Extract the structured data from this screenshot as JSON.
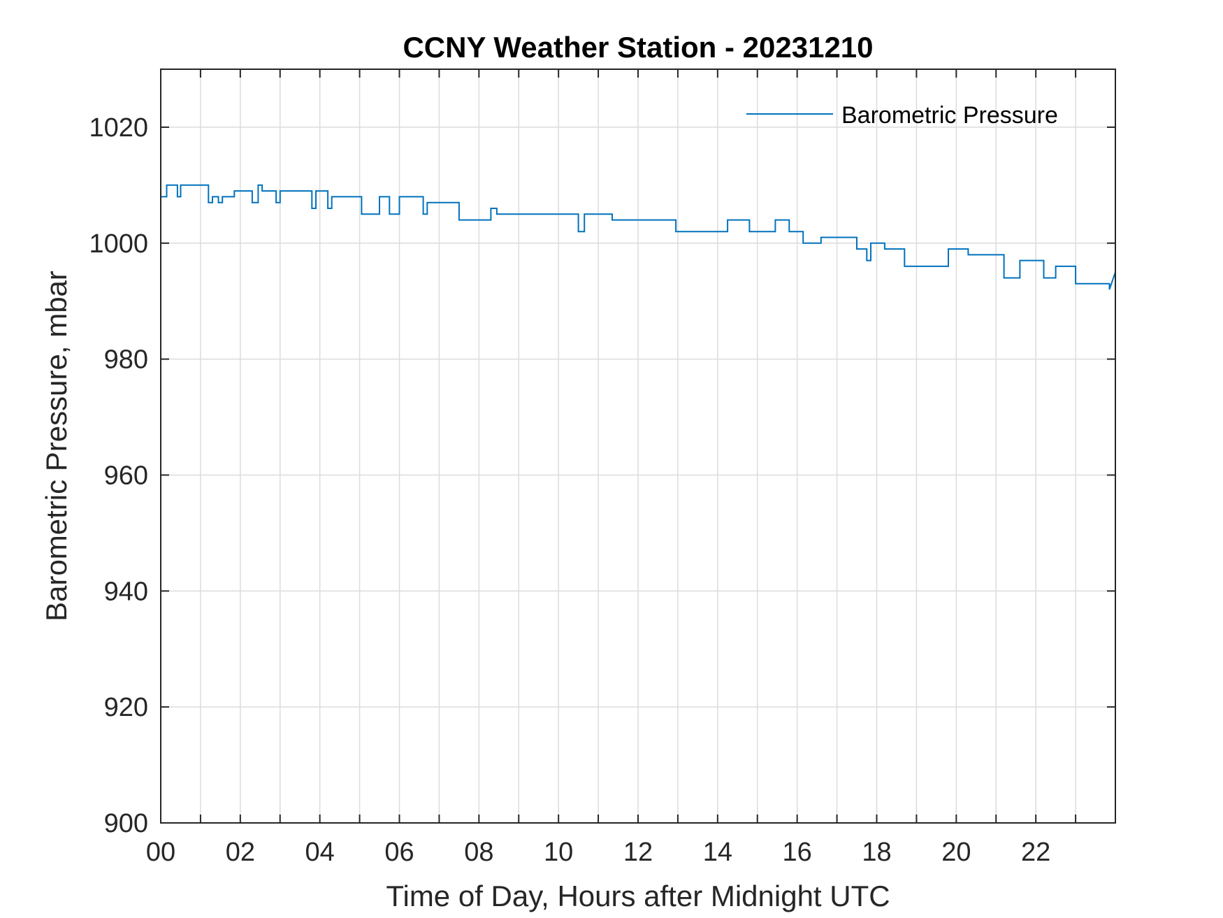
{
  "chart_data": {
    "type": "line",
    "title": "CCNY Weather Station - 20231210",
    "xlabel": "Time of Day, Hours after Midnight UTC",
    "ylabel": "Barometric Pressure, mbar",
    "xlim": [
      0,
      24
    ],
    "ylim": [
      900,
      1030
    ],
    "x_ticks": [
      0,
      2,
      4,
      6,
      8,
      10,
      12,
      14,
      16,
      18,
      20,
      22
    ],
    "x_tick_labels": [
      "00",
      "02",
      "04",
      "06",
      "08",
      "10",
      "12",
      "14",
      "16",
      "18",
      "20",
      "22"
    ],
    "y_ticks": [
      900,
      920,
      940,
      960,
      980,
      1000,
      1020
    ],
    "y_tick_labels": [
      "900",
      "920",
      "940",
      "960",
      "980",
      "1000",
      "1020"
    ],
    "grid": true,
    "legend_position": "top-right",
    "colors": {
      "series": "#0072BD",
      "grid": "#dcdcdc",
      "axes": "#262626"
    },
    "series": [
      {
        "name": "Barometric Pressure",
        "x": [
          0.0,
          0.15,
          0.15,
          0.42,
          0.42,
          0.5,
          0.5,
          1.2,
          1.2,
          1.3,
          1.3,
          1.45,
          1.45,
          1.55,
          1.55,
          1.85,
          1.85,
          2.3,
          2.3,
          2.45,
          2.45,
          2.55,
          2.55,
          2.9,
          2.9,
          3.0,
          3.0,
          3.8,
          3.8,
          3.9,
          3.9,
          4.2,
          4.2,
          4.3,
          4.3,
          5.05,
          5.05,
          5.5,
          5.5,
          5.75,
          5.75,
          6.0,
          6.0,
          6.6,
          6.6,
          6.7,
          6.7,
          7.5,
          7.5,
          8.3,
          8.3,
          8.45,
          8.45,
          10.5,
          10.5,
          10.65,
          10.65,
          11.35,
          11.35,
          12.95,
          12.95,
          14.25,
          14.25,
          14.8,
          14.8,
          15.45,
          15.45,
          15.8,
          15.8,
          16.15,
          16.15,
          16.6,
          16.6,
          17.5,
          17.5,
          17.75,
          17.75,
          17.85,
          17.85,
          18.2,
          18.2,
          18.7,
          18.7,
          19.8,
          19.8,
          20.3,
          20.3,
          21.2,
          21.2,
          21.6,
          21.6,
          22.2,
          22.2,
          22.5,
          22.5,
          23.0,
          23.0,
          23.85,
          23.85,
          24.0
        ],
        "y": [
          1008,
          1008,
          1010,
          1010,
          1008,
          1008,
          1010,
          1010,
          1007,
          1007,
          1008,
          1008,
          1007,
          1007,
          1008,
          1008,
          1009,
          1009,
          1007,
          1007,
          1010,
          1010,
          1009,
          1009,
          1007,
          1007,
          1009,
          1009,
          1006,
          1006,
          1009,
          1009,
          1006,
          1006,
          1008,
          1008,
          1005,
          1005,
          1008,
          1008,
          1005,
          1005,
          1008,
          1008,
          1005,
          1005,
          1007,
          1007,
          1004,
          1004,
          1006,
          1006,
          1005,
          1005,
          1002,
          1002,
          1005,
          1005,
          1004,
          1004,
          1002,
          1002,
          1004,
          1004,
          1002,
          1002,
          1004,
          1004,
          1002,
          1002,
          1000,
          1000,
          1001,
          1001,
          999,
          999,
          997,
          997,
          1000,
          1000,
          999,
          999,
          996,
          996,
          999,
          999,
          998,
          998,
          994,
          994,
          997,
          997,
          994,
          994,
          996,
          996,
          993,
          993,
          992,
          995
        ]
      }
    ]
  }
}
